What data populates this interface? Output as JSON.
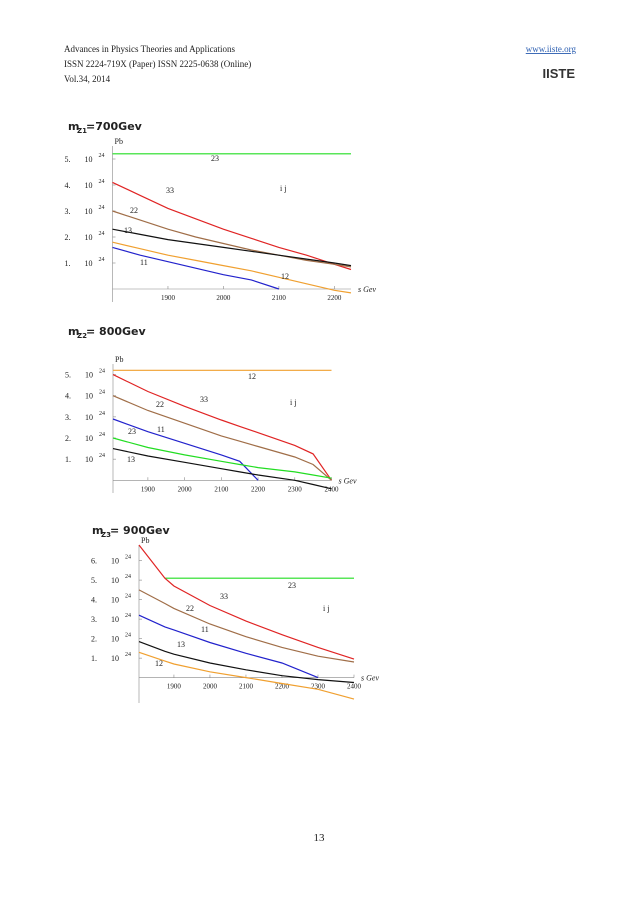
{
  "header": {
    "journal": "Advances in Physics Theories and Applications",
    "issn": "ISSN 2224-719X (Paper) ISSN 2225-0638 (Online)",
    "volume": "Vol.34, 2014",
    "url": "www.iiste.org",
    "logo": "IISTE"
  },
  "page_number": "13",
  "chart_data": [
    {
      "type": "line",
      "title": "m",
      "title_sub": "Z1",
      "title_rest": "=700Gev",
      "ylabel": "Pb",
      "xlabel": "s  Gev",
      "x": [
        1800,
        1850,
        1900,
        1950,
        2000,
        2050,
        2100,
        2150,
        2200,
        2230
      ],
      "xlim": [
        1800,
        2230
      ],
      "ylim": [
        -0.5,
        5.5
      ],
      "xticks": [
        1900,
        2000,
        2100,
        2200
      ],
      "yticks": [
        {
          "value": 1,
          "label": "1.",
          "base": "10",
          "sup": "24"
        },
        {
          "value": 2,
          "label": "2.",
          "base": "10",
          "sup": "24"
        },
        {
          "value": 3,
          "label": "3.",
          "base": "10",
          "sup": "24"
        },
        {
          "value": 4,
          "label": "4.",
          "base": "10",
          "sup": "24"
        },
        {
          "value": 5,
          "label": "5.",
          "base": "10",
          "sup": "24"
        }
      ],
      "series": [
        {
          "name": "23",
          "color": "#22dd22",
          "values": [
            5.2,
            5.2,
            5.2,
            5.2,
            5.2,
            5.2,
            5.2,
            5.2,
            5.2,
            5.2
          ]
        },
        {
          "name": "33",
          "color": "#e02424",
          "values": [
            4.1,
            3.6,
            3.1,
            2.7,
            2.3,
            1.95,
            1.6,
            1.3,
            0.95,
            0.75
          ]
        },
        {
          "name": "22",
          "color": "#a06e48",
          "values": [
            3.0,
            2.65,
            2.3,
            2.0,
            1.75,
            1.5,
            1.3,
            1.1,
            0.95,
            0.85
          ]
        },
        {
          "name": "13",
          "color": "#111111",
          "values": [
            2.3,
            2.1,
            1.9,
            1.75,
            1.6,
            1.45,
            1.3,
            1.15,
            1.0,
            0.9
          ]
        },
        {
          "name": "11",
          "color": "#2222cc",
          "values": [
            1.6,
            1.3,
            1.05,
            0.8,
            0.55,
            0.35,
            0,
            null,
            null,
            null
          ]
        },
        {
          "name": "12",
          "color": "#f0a030",
          "values": [
            1.8,
            1.55,
            1.3,
            1.1,
            0.9,
            0.7,
            0.45,
            0.2,
            -0.05,
            -0.15
          ]
        }
      ],
      "annotations": [
        "23",
        "33",
        "22",
        "13",
        "11",
        "12",
        "i j"
      ]
    },
    {
      "type": "line",
      "title": "m",
      "title_sub": "Z2",
      "title_rest": " = 800Gev",
      "ylabel": "Pb",
      "xlabel": "s  Gev",
      "x": [
        1805,
        1900,
        2000,
        2100,
        2150,
        2200,
        2300,
        2350,
        2400
      ],
      "xlim": [
        1805,
        2400
      ],
      "ylim": [
        -0.6,
        5.5
      ],
      "xticks": [
        1900,
        2000,
        2100,
        2200,
        2300,
        2400
      ],
      "yticks": [
        {
          "value": 1,
          "label": "1.",
          "base": "10",
          "sup": "24"
        },
        {
          "value": 2,
          "label": "2.",
          "base": "10",
          "sup": "24"
        },
        {
          "value": 3,
          "label": "3.",
          "base": "10",
          "sup": "24"
        },
        {
          "value": 4,
          "label": "4.",
          "base": "10",
          "sup": "24"
        },
        {
          "value": 5,
          "label": "5.",
          "base": "10",
          "sup": "24"
        }
      ],
      "series": [
        {
          "name": "12",
          "color": "#f0a030",
          "values": [
            5.2,
            5.2,
            5.2,
            5.2,
            5.2,
            5.2,
            5.2,
            5.2,
            5.2
          ]
        },
        {
          "name": "33",
          "color": "#e02424",
          "values": [
            5.0,
            4.2,
            3.5,
            2.85,
            2.55,
            2.25,
            1.65,
            1.25,
            0
          ]
        },
        {
          "name": "22",
          "color": "#a06e48",
          "values": [
            4.0,
            3.3,
            2.7,
            2.1,
            1.85,
            1.6,
            1.1,
            0.75,
            0
          ]
        },
        {
          "name": "11",
          "color": "#2222cc",
          "values": [
            2.9,
            2.3,
            1.75,
            1.2,
            0.9,
            0,
            null,
            null,
            null
          ]
        },
        {
          "name": "23",
          "color": "#22dd22",
          "values": [
            2.0,
            1.55,
            1.2,
            0.9,
            0.75,
            0.6,
            0.4,
            0.25,
            0.1
          ]
        },
        {
          "name": "13",
          "color": "#111111",
          "values": [
            1.5,
            1.15,
            0.85,
            0.55,
            0.4,
            0.25,
            0,
            -0.2,
            -0.4
          ]
        }
      ],
      "annotations": [
        "12",
        "33",
        "22",
        "11",
        "23",
        "13",
        "i j"
      ]
    },
    {
      "type": "line",
      "title": "m",
      "title_sub": "Z3",
      "title_rest": " = 900Gev",
      "ylabel": "Pb",
      "xlabel": "s  Gev",
      "x": [
        1803,
        1875,
        1900,
        2000,
        2100,
        2200,
        2300,
        2400
      ],
      "xlim": [
        1803,
        2400
      ],
      "ylim": [
        -1.3,
        6.8
      ],
      "xticks": [
        1900,
        2000,
        2100,
        2200,
        2300,
        2400
      ],
      "yticks": [
        {
          "value": 1,
          "label": "1.",
          "base": "10",
          "sup": "24"
        },
        {
          "value": 2,
          "label": "2.",
          "base": "10",
          "sup": "24"
        },
        {
          "value": 3,
          "label": "3.",
          "base": "10",
          "sup": "24"
        },
        {
          "value": 4,
          "label": "4.",
          "base": "10",
          "sup": "24"
        },
        {
          "value": 5,
          "label": "5.",
          "base": "10",
          "sup": "24"
        },
        {
          "value": 6,
          "label": "6.",
          "base": "10",
          "sup": "24"
        }
      ],
      "series": [
        {
          "name": "23",
          "color": "#22dd22",
          "values": [
            null,
            5.1,
            5.1,
            5.1,
            5.1,
            5.1,
            5.1,
            5.1
          ]
        },
        {
          "name": "33",
          "color": "#e02424",
          "values": [
            6.8,
            5.1,
            4.7,
            3.7,
            2.9,
            2.2,
            1.55,
            0.95
          ]
        },
        {
          "name": "22",
          "color": "#a06e48",
          "values": [
            4.5,
            3.8,
            3.55,
            2.75,
            2.1,
            1.55,
            1.1,
            0.8
          ]
        },
        {
          "name": "11",
          "color": "#2222cc",
          "values": [
            3.2,
            2.6,
            2.45,
            1.8,
            1.25,
            0.75,
            0,
            null
          ]
        },
        {
          "name": "13",
          "color": "#111111",
          "values": [
            1.85,
            1.35,
            1.2,
            0.75,
            0.4,
            0.1,
            -0.1,
            -0.25
          ]
        },
        {
          "name": "12",
          "color": "#f0a030",
          "values": [
            1.3,
            0.85,
            0.7,
            0.3,
            0,
            -0.3,
            -0.6,
            -1.1
          ]
        }
      ],
      "annotations": [
        "23",
        "33",
        "22",
        "11",
        "13",
        "12",
        "i j"
      ]
    }
  ]
}
